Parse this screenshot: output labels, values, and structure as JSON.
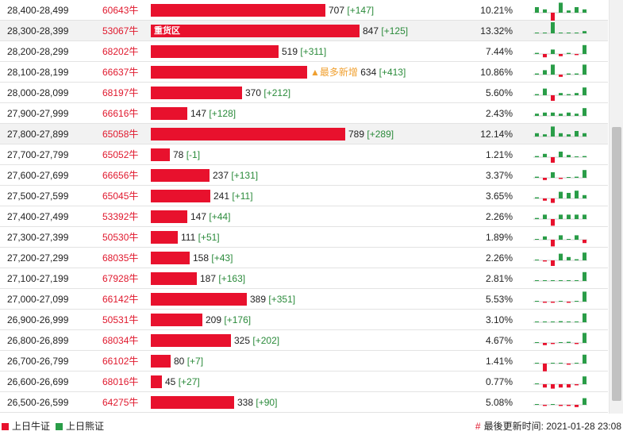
{
  "colors": {
    "bull": "#e8112d",
    "bear": "#2a9d48",
    "text_red": "#e0182d"
  },
  "rows": [
    {
      "range": "28,400-28,499",
      "code": "60643牛",
      "qty": 707,
      "delta": "+147",
      "pct": "10.21%",
      "mini": [
        0.5,
        0.3,
        -0.8,
        0.9,
        0.2,
        0.5,
        0.3
      ]
    },
    {
      "range": "28,300-28,399",
      "code": "53067牛",
      "qty": 847,
      "delta": "+125",
      "pct": "13.32%",
      "bar_label": "重货区",
      "highlight": true,
      "mini": [
        0.05,
        0.05,
        1,
        0.05,
        0.05,
        0.05,
        0.2
      ]
    },
    {
      "range": "28,200-28,299",
      "code": "68202牛",
      "qty": 519,
      "delta": "+311",
      "pct": "7.44%",
      "mini": [
        0.1,
        -0.3,
        0.4,
        -0.2,
        0.1,
        -0.1,
        0.8
      ]
    },
    {
      "range": "28,100-28,199",
      "code": "66637牛",
      "qty": 634,
      "delta": "+413",
      "pct": "10.86%",
      "bar_label": "",
      "flag": "▲最多新增",
      "mini": [
        0.1,
        0.4,
        0.9,
        -0.2,
        0.1,
        0.1,
        0.9
      ]
    },
    {
      "range": "28,000-28,099",
      "code": "68197牛",
      "qty": 370,
      "delta": "+212",
      "pct": "5.60%",
      "mini": [
        0.1,
        0.6,
        -0.5,
        0.2,
        0.1,
        0.2,
        0.7
      ]
    },
    {
      "range": "27,900-27,999",
      "code": "66616牛",
      "qty": 147,
      "delta": "+128",
      "pct": "2.43%",
      "mini": [
        0.2,
        0.3,
        0.3,
        0.2,
        0.3,
        0.2,
        0.7
      ]
    },
    {
      "range": "27,800-27,899",
      "code": "65058牛",
      "qty": 789,
      "delta": "+289",
      "pct": "12.14%",
      "highlight": true,
      "mini": [
        0.3,
        0.2,
        0.9,
        0.3,
        0.2,
        0.5,
        0.3
      ]
    },
    {
      "range": "27,700-27,799",
      "code": "65052牛",
      "qty": 78,
      "delta": "-1",
      "pct": "1.21%",
      "mini": [
        0.1,
        0.3,
        -0.5,
        0.5,
        0.2,
        0.05,
        0.1
      ]
    },
    {
      "range": "27,600-27,699",
      "code": "66656牛",
      "qty": 237,
      "delta": "+131",
      "pct": "3.37%",
      "mini": [
        0.1,
        -0.2,
        0.5,
        -0.1,
        0.05,
        0.1,
        0.7
      ]
    },
    {
      "range": "27,500-27,599",
      "code": "65045牛",
      "qty": 241,
      "delta": "+11",
      "pct": "3.65%",
      "mini": [
        0.1,
        -0.2,
        -0.4,
        0.6,
        0.5,
        0.7,
        0.3
      ]
    },
    {
      "range": "27,400-27,499",
      "code": "53392牛",
      "qty": 147,
      "delta": "+44",
      "pct": "2.26%",
      "mini": [
        0.1,
        0.4,
        -0.6,
        0.4,
        0.4,
        0.4,
        0.4
      ]
    },
    {
      "range": "27,300-27,399",
      "code": "50530牛",
      "qty": 111,
      "delta": "+51",
      "pct": "1.89%",
      "mini": [
        0.05,
        0.3,
        -0.6,
        0.4,
        0.05,
        0.4,
        -0.3
      ]
    },
    {
      "range": "27,200-27,299",
      "code": "68035牛",
      "qty": 158,
      "delta": "+43",
      "pct": "2.26%",
      "mini": [
        0.05,
        -0.1,
        -0.5,
        0.6,
        0.3,
        0.1,
        0.7
      ]
    },
    {
      "range": "27,100-27,199",
      "code": "67928牛",
      "qty": 187,
      "delta": "+163",
      "pct": "2.81%",
      "mini": [
        0.05,
        0.05,
        0.05,
        0.05,
        0.05,
        0.05,
        0.8
      ]
    },
    {
      "range": "27,000-27,099",
      "code": "66142牛",
      "qty": 389,
      "delta": "+351",
      "pct": "5.53%",
      "mini": [
        0.05,
        -0.1,
        -0.1,
        0.05,
        -0.1,
        0.05,
        0.9
      ]
    },
    {
      "range": "26,900-26,999",
      "code": "50531牛",
      "qty": 209,
      "delta": "+176",
      "pct": "3.10%",
      "mini": [
        0.05,
        0.05,
        0.05,
        0.1,
        0.05,
        0.05,
        0.8
      ]
    },
    {
      "range": "26,800-26,899",
      "code": "68034牛",
      "qty": 325,
      "delta": "+202",
      "pct": "4.67%",
      "mini": [
        0.05,
        -0.2,
        -0.1,
        0.05,
        0.1,
        -0.1,
        0.9
      ]
    },
    {
      "range": "26,700-26,799",
      "code": "66102牛",
      "qty": 80,
      "delta": "+7",
      "pct": "1.41%",
      "mini": [
        0.05,
        -0.7,
        0.05,
        0.05,
        -0.1,
        0.05,
        0.8
      ]
    },
    {
      "range": "26,600-26,699",
      "code": "68016牛",
      "qty": 45,
      "delta": "+27",
      "pct": "0.77%",
      "mini": [
        0.05,
        -0.3,
        -0.4,
        -0.3,
        -0.3,
        -0.1,
        0.7
      ]
    },
    {
      "range": "26,500-26,599",
      "code": "64275牛",
      "qty": 338,
      "delta": "+90",
      "pct": "5.08%",
      "mini": [
        0.05,
        -0.1,
        0.05,
        -0.1,
        -0.1,
        -0.2,
        0.6
      ]
    }
  ],
  "legend": {
    "bull_label": "上日牛证",
    "bear_label": "上日熊证"
  },
  "updated": {
    "hash": "#",
    "label": "最後更新时间: 2021-01-28 23:08"
  }
}
